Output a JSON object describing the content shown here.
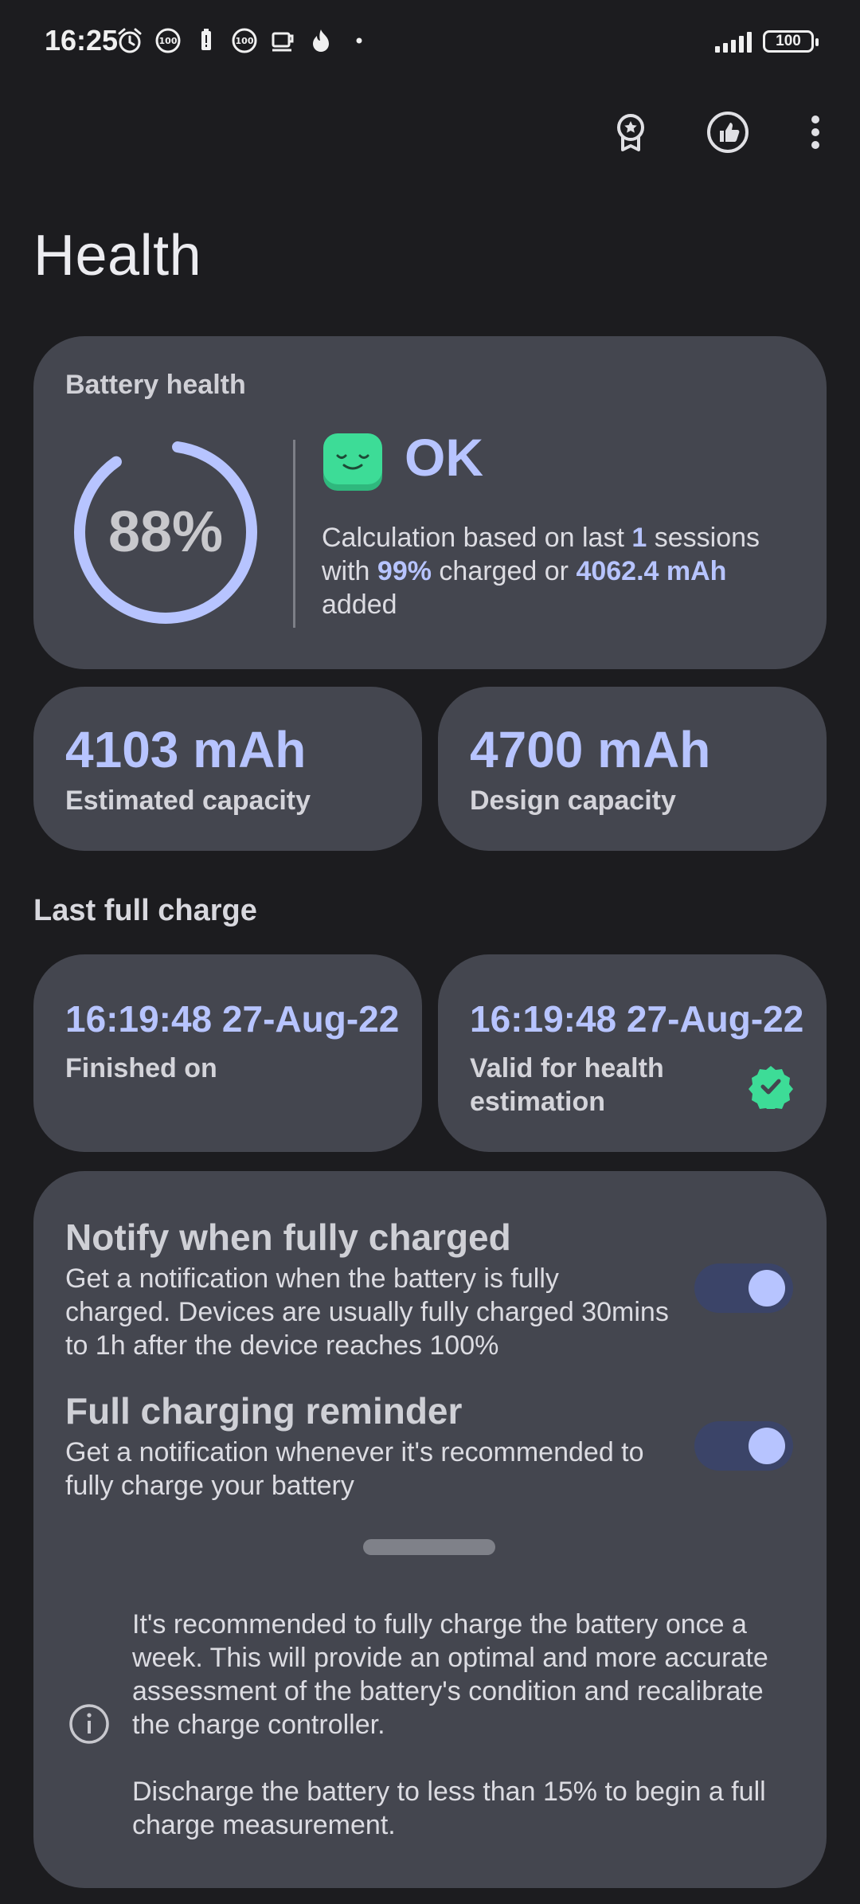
{
  "status_bar": {
    "time": "16:25",
    "icons": [
      "alarm-icon",
      "badge-100-icon",
      "battery-alert-icon",
      "badge-100-icon",
      "coffee-icon",
      "flame-icon",
      "dot-icon"
    ],
    "battery_level": "100"
  },
  "toolbar": {
    "actions": [
      "award-icon",
      "thumbs-up-icon",
      "more-vert-icon"
    ]
  },
  "page": {
    "title": "Health"
  },
  "battery_health": {
    "label": "Battery health",
    "percent_text": "88%",
    "percent_value": 0.88,
    "status": "OK",
    "desc_prefix": "Calculation based on last ",
    "sessions": "1",
    "desc_mid": " sessions with ",
    "charged_percent": "99%",
    "desc_mid2": " charged or ",
    "added": "4062.4 mAh",
    "desc_suffix": " added"
  },
  "capacity": {
    "estimated_value": "4103 mAh",
    "estimated_label": "Estimated capacity",
    "design_value": "4700 mAh",
    "design_label": "Design capacity"
  },
  "last_full_charge": {
    "section_title": "Last full charge",
    "finished_value": "16:19:48 27-Aug-22",
    "finished_label": "Finished on",
    "valid_value": "16:19:48 27-Aug-22",
    "valid_label": "Valid for health estimation"
  },
  "settings": {
    "notify_title": "Notify when fully charged",
    "notify_desc": "Get a notification when the battery is fully charged. Devices are usually fully charged 30mins to 1h after the device reaches 100%",
    "notify_enabled": true,
    "reminder_title": "Full charging reminder",
    "reminder_desc": "Get a notification whenever it's recommended to fully charge your battery",
    "reminder_enabled": true
  },
  "info": {
    "text1": "It's recommended to fully charge the battery once a week. This will provide an optimal and more accurate assessment of the battery's condition and recalibrate the charge controller.",
    "text2": "Discharge the battery to less than 15% to begin a full charge measurement."
  },
  "colors": {
    "accent": "#b7c4ff",
    "card": "#44464f",
    "background": "#1c1c1f",
    "ok_green": "#3ddc97",
    "toggle_track": "#3b4468"
  }
}
